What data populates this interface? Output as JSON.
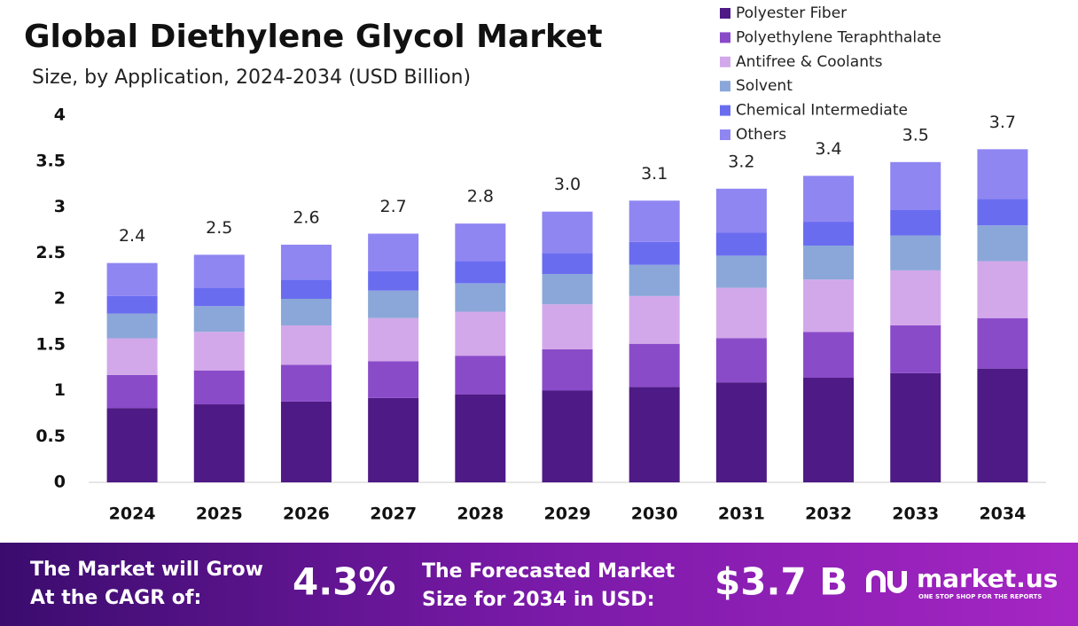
{
  "chart_data": {
    "type": "stacked_bar",
    "title": "Global Diethylene Glycol Market",
    "subtitle": "Size, by Application, 2024-2034 (USD Billion)",
    "categories": [
      "2024",
      "2025",
      "2026",
      "2027",
      "2028",
      "2029",
      "2030",
      "2031",
      "2032",
      "2033",
      "2034"
    ],
    "series": [
      {
        "name": "Polyester Fiber",
        "color": "#4e1a85",
        "values": [
          0.81,
          0.85,
          0.88,
          0.92,
          0.96,
          1.0,
          1.04,
          1.09,
          1.14,
          1.19,
          1.24
        ]
      },
      {
        "name": "Polyethylene Teraphthalate",
        "color": "#8a4bc9",
        "values": [
          0.36,
          0.37,
          0.4,
          0.4,
          0.42,
          0.45,
          0.47,
          0.48,
          0.5,
          0.52,
          0.55
        ]
      },
      {
        "name": "Antifree & Coolants",
        "color": "#d3a8ea",
        "values": [
          0.4,
          0.42,
          0.43,
          0.47,
          0.48,
          0.49,
          0.52,
          0.55,
          0.57,
          0.6,
          0.62
        ]
      },
      {
        "name": "Solvent",
        "color": "#8ba7d9",
        "values": [
          0.27,
          0.28,
          0.29,
          0.3,
          0.31,
          0.33,
          0.34,
          0.35,
          0.37,
          0.38,
          0.39
        ]
      },
      {
        "name": "Chemical Intermediate",
        "color": "#6a6cf0",
        "values": [
          0.19,
          0.2,
          0.21,
          0.21,
          0.24,
          0.23,
          0.25,
          0.25,
          0.26,
          0.28,
          0.29
        ]
      },
      {
        "name": "Others",
        "color": "#8f86f2",
        "values": [
          0.36,
          0.36,
          0.38,
          0.41,
          0.41,
          0.45,
          0.45,
          0.48,
          0.5,
          0.52,
          0.54
        ]
      }
    ],
    "totals": {
      "values": [
        2.4,
        2.5,
        2.6,
        2.7,
        2.8,
        3.0,
        3.1,
        3.2,
        3.4,
        3.5,
        3.7
      ],
      "value_labels": [
        "2.4",
        "2.5",
        "2.6",
        "2.7",
        "2.8",
        "3.0",
        "3.1",
        "3.2",
        "3.4",
        "3.5",
        "3.7"
      ]
    },
    "ylim": [
      0,
      4
    ],
    "yticks": [
      0,
      0.5,
      1,
      1.5,
      2,
      2.5,
      3,
      3.5,
      4
    ],
    "grid": false
  },
  "footer": {
    "cagr_text": [
      "The Market will Grow",
      "At the CAGR of:"
    ],
    "cagr": "4.3%",
    "size_text": [
      "The Forecasted Market",
      "Size for 2034 in USD:"
    ],
    "size": "$3.7 B",
    "brand": "market.us",
    "tagline": "ONE STOP SHOP FOR THE REPORTS"
  }
}
